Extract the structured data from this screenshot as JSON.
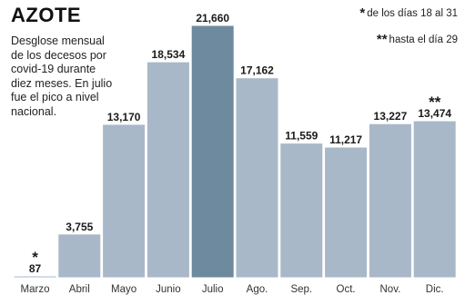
{
  "header": {
    "title": "AZOTE",
    "description": "Desglose mensual de los decesos por covid-19 durante diez meses. En julio fue el pico a nivel nacional."
  },
  "notes": [
    {
      "symbol": "*",
      "text": "de los días 18 al 31"
    },
    {
      "symbol": "**",
      "text": "hasta el día 29"
    }
  ],
  "colors": {
    "bar": "#a8b8c8",
    "bar_highlight": "#6e8a9e",
    "bar_stroke": "#ffffff",
    "text": "#1a1a1a"
  },
  "chart_data": {
    "type": "bar",
    "title": "AZOTE",
    "categories": [
      "Marzo",
      "Abril",
      "Mayo",
      "Junio",
      "Julio",
      "Ago.",
      "Sep.",
      "Oct.",
      "Nov.",
      "Dic."
    ],
    "values": [
      87,
      3755,
      13170,
      18534,
      21660,
      17162,
      11559,
      11217,
      13227,
      13474
    ],
    "value_labels": [
      "87",
      "3,755",
      "13,170",
      "18,534",
      "21,660",
      "17,162",
      "11,559",
      "11,217",
      "13,227",
      "13,474"
    ],
    "markers": [
      "*",
      "",
      "",
      "",
      "",
      "",
      "",
      "",
      "",
      "**"
    ],
    "highlight_index": 4,
    "ylim": [
      0,
      21660
    ],
    "xlabel": "",
    "ylabel": "",
    "grid": false
  }
}
